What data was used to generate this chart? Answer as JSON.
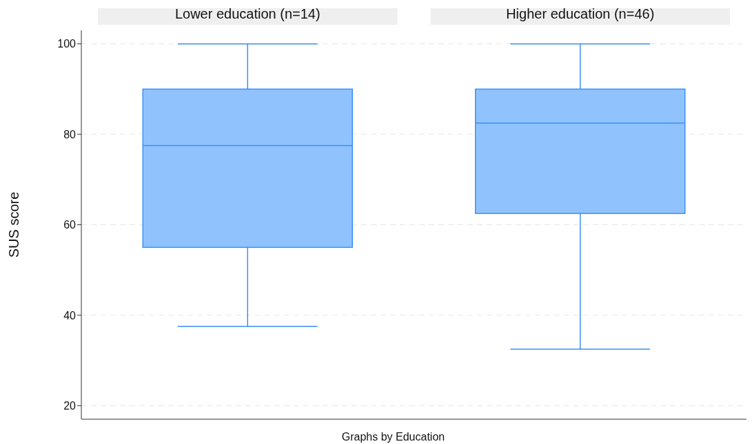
{
  "chart_data": {
    "type": "box",
    "ylabel": "SUS score",
    "categories": [
      "Lower education (n=14)",
      "Higher education (n=46)"
    ],
    "color": "#90c3fe",
    "boxes": [
      {
        "low": 37.5,
        "q1": 55,
        "median": 77.5,
        "q3": 90,
        "high": 100
      },
      {
        "low": 32.5,
        "q1": 62.5,
        "median": 82.5,
        "q3": 90,
        "high": 100
      }
    ],
    "ylim": [
      17,
      103
    ],
    "yticks": [
      20,
      40,
      60,
      80,
      100
    ],
    "grid": "y",
    "annotations": [
      "Graphs by Education"
    ]
  }
}
